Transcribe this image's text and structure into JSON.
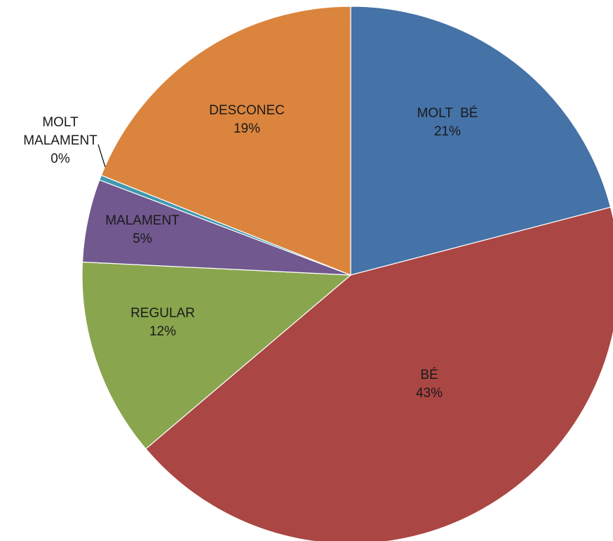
{
  "chart_data": {
    "type": "pie",
    "start_angle_deg": 0,
    "direction": "clockwise",
    "slices": [
      {
        "label_lines": [
          "MOLT  BÉ"
        ],
        "value": 21,
        "value_text": "21%",
        "color": "#4572A7"
      },
      {
        "label_lines": [
          "BÉ"
        ],
        "value": 43,
        "value_text": "43%",
        "color": "#AA4643"
      },
      {
        "label_lines": [
          "REGULAR"
        ],
        "value": 12,
        "value_text": "12%",
        "color": "#89A54E"
      },
      {
        "label_lines": [
          "MALAMENT"
        ],
        "value": 5,
        "value_text": "5%",
        "color": "#71588F"
      },
      {
        "label_lines": [
          "MOLT",
          "MALAMENT"
        ],
        "value": 0.3,
        "value_text": "0%",
        "color": "#4198AF"
      },
      {
        "label_lines": [
          "DESCONEC"
        ],
        "value": 19,
        "value_text": "19%",
        "color": "#DB843D"
      }
    ]
  }
}
